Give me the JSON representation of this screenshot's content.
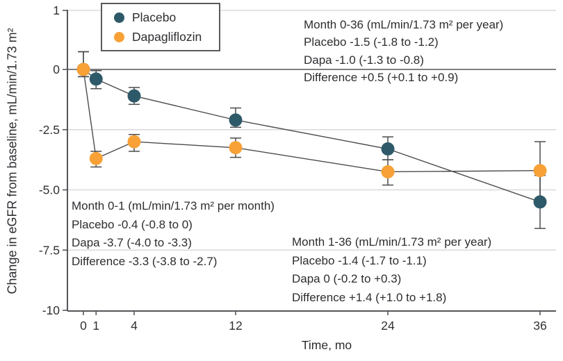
{
  "figure": {
    "y_axis_label": "Change in eGFR from baseline, mL/min/1.73 m²",
    "x_axis_label": "Time, mo"
  },
  "legend": {
    "items": [
      {
        "label": "Placebo",
        "color": "#2e5968"
      },
      {
        "label": "Dapagliflozin",
        "color": "#f7a137"
      }
    ]
  },
  "annotations": {
    "month_0_1": {
      "lines": [
        "Month 0-1 (mL/min/1.73 m² per month)",
        "Placebo -0.4 (-0.8 to 0)",
        "Dapa -3.7 (-4.0 to -3.3)",
        "Difference -3.3 (-3.8 to -2.7)"
      ]
    },
    "month_0_36": {
      "lines": [
        "Month 0-36 (mL/min/1.73 m² per year)",
        "Placebo -1.5 (-1.8 to -1.2)",
        "Dapa -1.0 (-1.3 to -0.8)",
        "Difference +0.5 (+0.1 to +0.9)"
      ]
    },
    "month_1_36": {
      "lines": [
        "Month 1-36 (mL/min/1.73 m² per year)",
        "Placebo -1.4 (-1.7 to -1.1)",
        "Dapa 0 (-0.2 to +0.3)",
        "Difference +1.4 (+1.0 to +1.8)"
      ]
    }
  },
  "chart_data": {
    "type": "line",
    "x": [
      0,
      1,
      4,
      12,
      24,
      36
    ],
    "x_tick_labels": [
      "0",
      "1",
      "4",
      "12",
      "24",
      "36"
    ],
    "y_ticks": [
      1,
      0,
      -2.5,
      -5,
      -7.5,
      -10
    ],
    "y_tick_labels": [
      "1",
      "0",
      "-2.5",
      "-5.0",
      "-7.5",
      "-10"
    ],
    "grid_values": [
      1,
      -2.5,
      -5,
      -7.5
    ],
    "xlabel": "Time, mo",
    "ylabel": "Change in eGFR from baseline, mL/min/1.73 m²",
    "ylim": [
      -10,
      1
    ],
    "legend_position": "top-left",
    "grid": true,
    "series": [
      {
        "name": "Placebo",
        "color": "#2e5968",
        "values": [
          0,
          -0.4,
          -1.1,
          -2.1,
          -3.3,
          -5.5
        ],
        "ci_low": [
          -0.3,
          -0.8,
          -1.45,
          -2.4,
          -3.75,
          -6.6
        ],
        "ci_high": [
          0.3,
          -0.05,
          -0.75,
          -1.6,
          -2.8,
          -4.4
        ]
      },
      {
        "name": "Dapagliflozin",
        "color": "#f7a137",
        "values": [
          0,
          -3.7,
          -3.0,
          -3.25,
          -4.25,
          -4.2
        ],
        "ci_low": [
          -0.3,
          -4.05,
          -3.4,
          -3.65,
          -4.8,
          -5.4
        ],
        "ci_high": [
          0.3,
          -3.4,
          -2.7,
          -2.85,
          -3.75,
          -3.0
        ]
      }
    ],
    "slope_estimates": [
      {
        "period": "Month 0-1",
        "unit": "mL/min/1.73 m² per month",
        "placebo": -0.4,
        "placebo_ci": [
          -0.8,
          0
        ],
        "dapagliflozin": -3.7,
        "dapagliflozin_ci": [
          -4.0,
          -3.3
        ],
        "difference": -3.3,
        "difference_ci": [
          -3.8,
          -2.7
        ]
      },
      {
        "period": "Month 0-36",
        "unit": "mL/min/1.73 m² per year",
        "placebo": -1.5,
        "placebo_ci": [
          -1.8,
          -1.2
        ],
        "dapagliflozin": -1.0,
        "dapagliflozin_ci": [
          -1.3,
          -0.8
        ],
        "difference": 0.5,
        "difference_ci": [
          0.1,
          0.9
        ]
      },
      {
        "period": "Month 1-36",
        "unit": "mL/min/1.73 m² per year",
        "placebo": -1.4,
        "placebo_ci": [
          -1.7,
          -1.1
        ],
        "dapagliflozin": 0,
        "dapagliflozin_ci": [
          -0.2,
          0.3
        ],
        "difference": 1.4,
        "difference_ci": [
          1.0,
          1.8
        ]
      }
    ]
  }
}
